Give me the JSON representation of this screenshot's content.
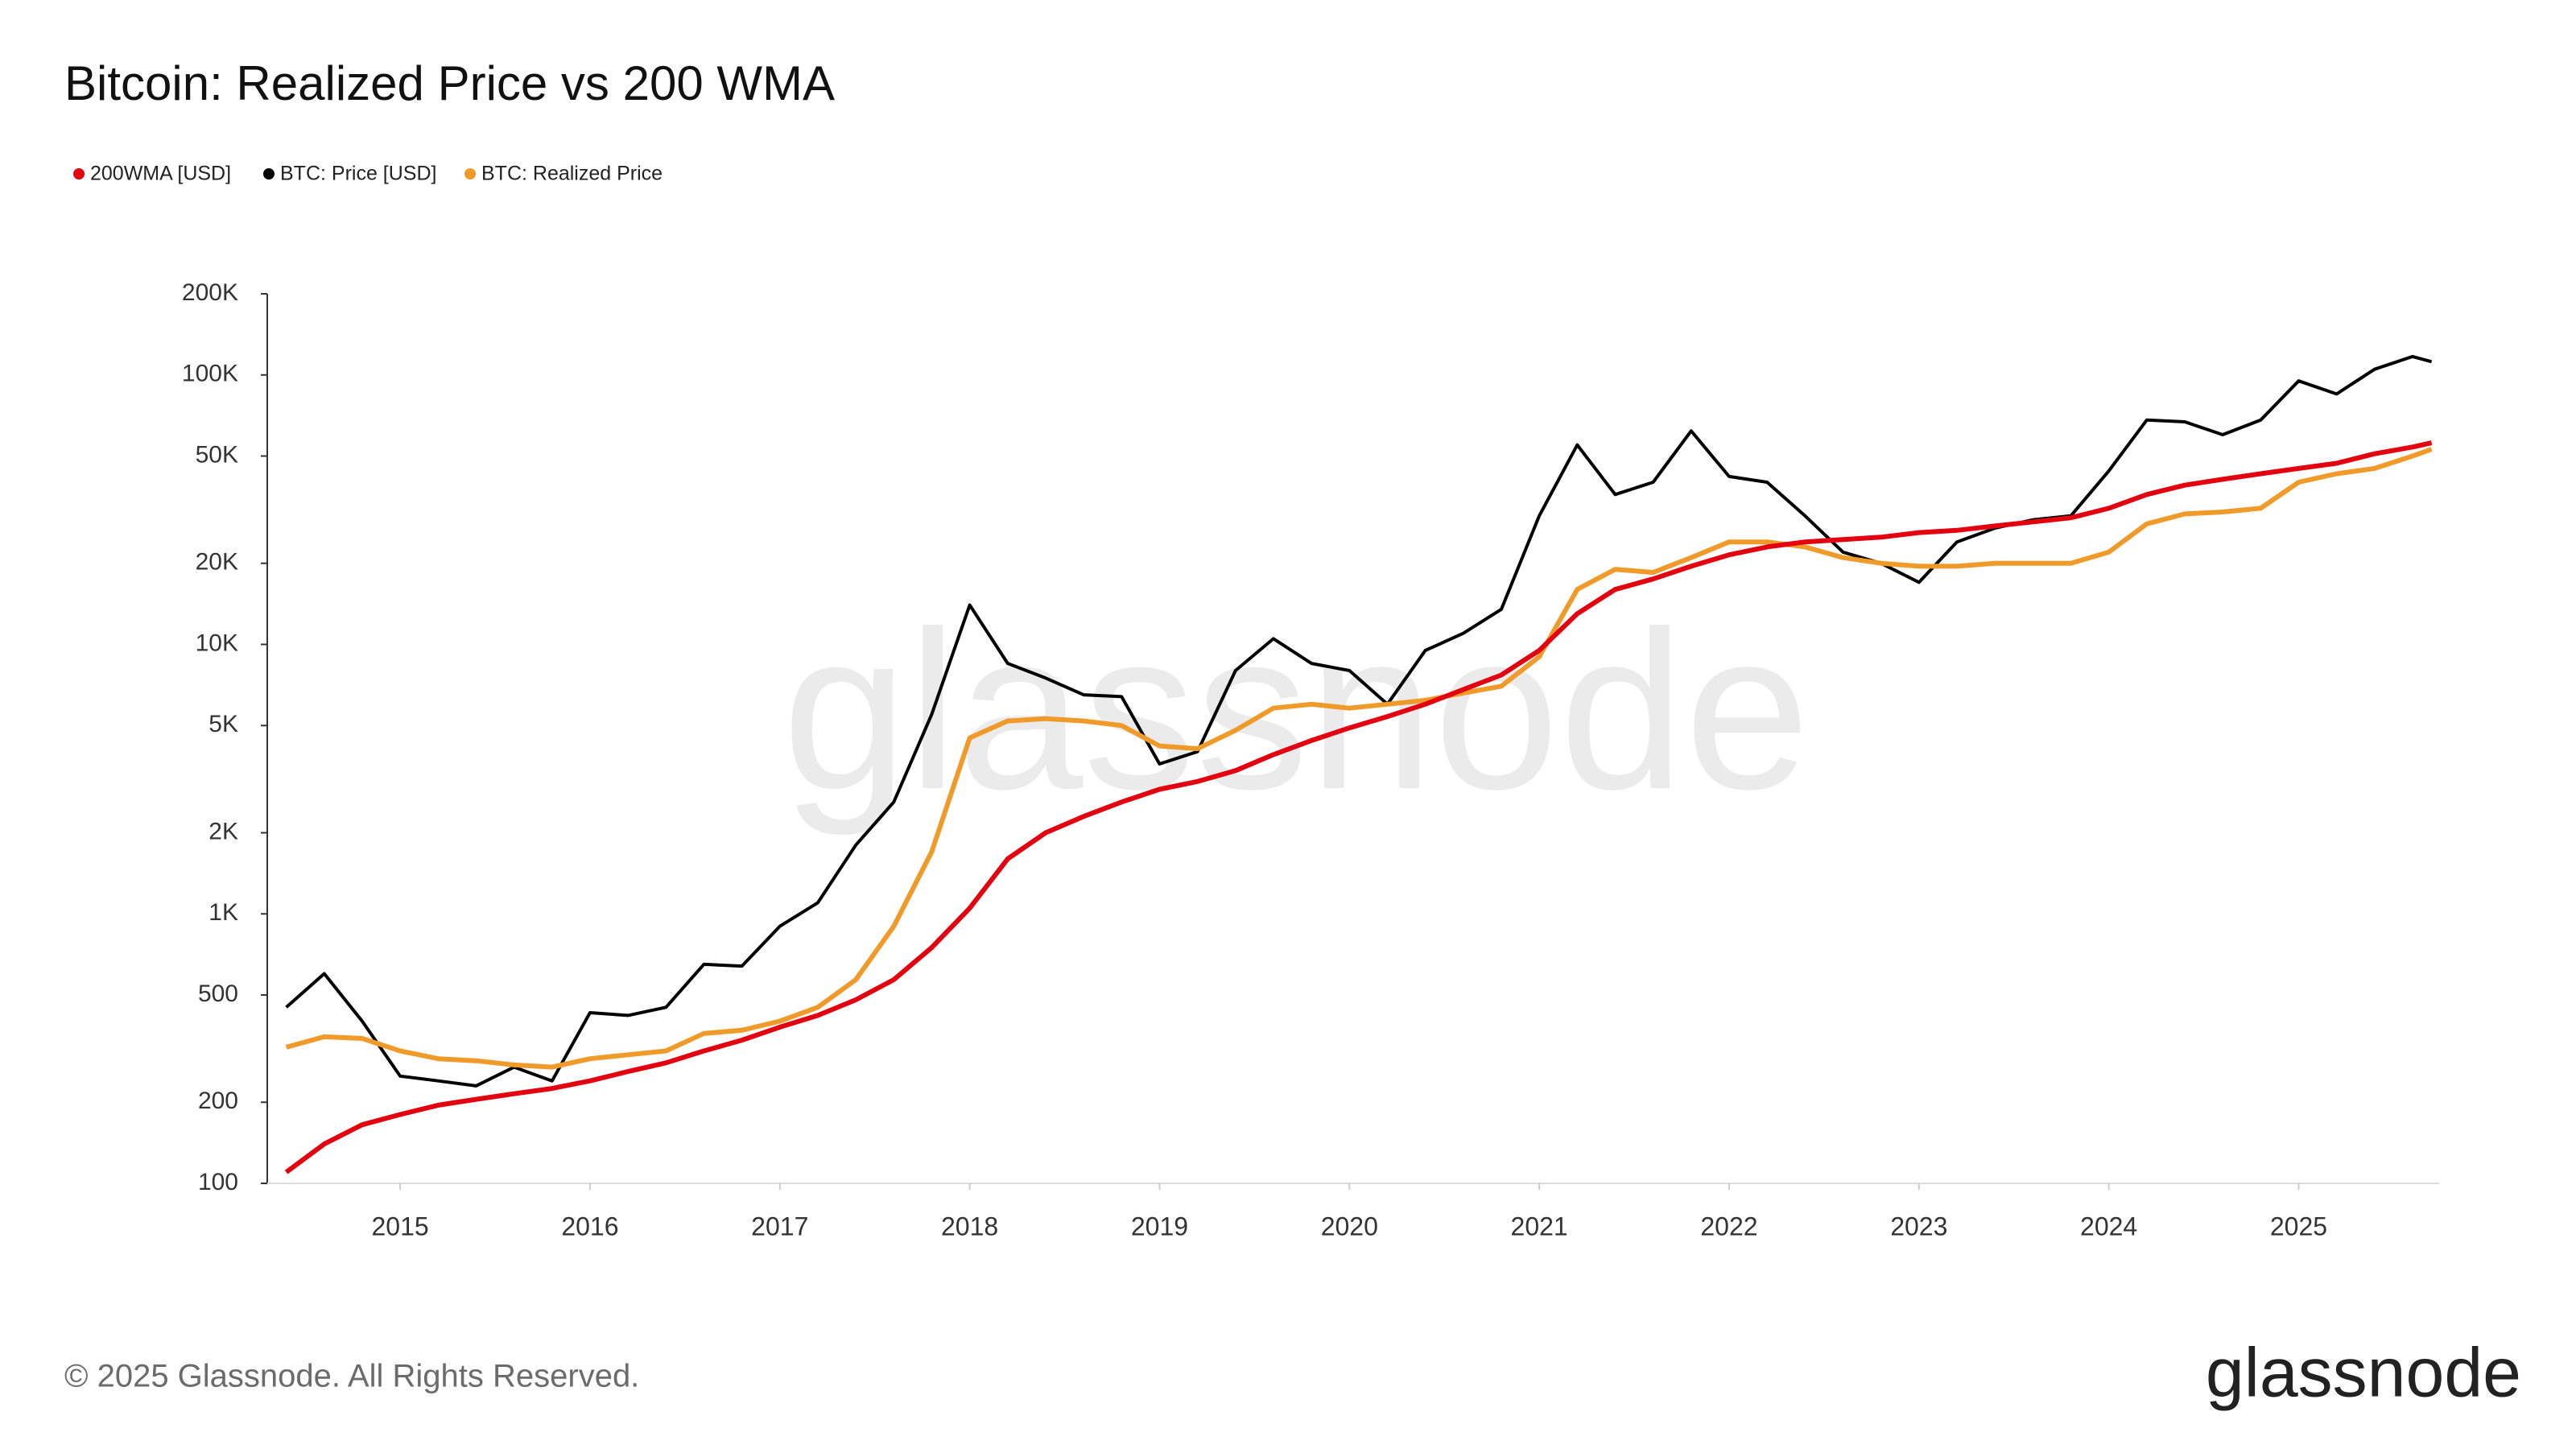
{
  "chart_data": {
    "type": "line",
    "title": "Bitcoin: Realized Price vs 200 WMA",
    "watermark": "glassnode",
    "footer": "© 2025 Glassnode. All Rights Reserved.",
    "logo": "glassnode",
    "log_y": true,
    "grid": false,
    "x": [
      2014.4,
      2014.6,
      2014.8,
      2015.0,
      2015.2,
      2015.4,
      2015.6,
      2015.8,
      2016.0,
      2016.2,
      2016.4,
      2016.6,
      2016.8,
      2017.0,
      2017.2,
      2017.4,
      2017.6,
      2017.8,
      2018.0,
      2018.2,
      2018.4,
      2018.6,
      2018.8,
      2019.0,
      2019.2,
      2019.4,
      2019.6,
      2019.8,
      2020.0,
      2020.2,
      2020.4,
      2020.6,
      2020.8,
      2021.0,
      2021.2,
      2021.4,
      2021.6,
      2021.8,
      2022.0,
      2022.2,
      2022.4,
      2022.6,
      2022.8,
      2023.0,
      2023.2,
      2023.4,
      2023.6,
      2023.8,
      2024.0,
      2024.2,
      2024.4,
      2024.6,
      2024.8,
      2025.0,
      2025.2,
      2025.4,
      2025.6,
      2025.7
    ],
    "xlim": [
      2014.3,
      2025.74
    ],
    "xticks": [
      2015,
      2016,
      2017,
      2018,
      2019,
      2020,
      2021,
      2022,
      2023,
      2024,
      2025
    ],
    "ylim": [
      100,
      200000
    ],
    "yticks": [
      100,
      200,
      500,
      {
        "value": 1000,
        "label": "1K"
      },
      {
        "value": 2000,
        "label": "2K"
      },
      {
        "value": 5000,
        "label": "5K"
      },
      {
        "value": 10000,
        "label": "10K"
      },
      {
        "value": 20000,
        "label": "20K"
      },
      {
        "value": 50000,
        "label": "50K"
      },
      {
        "value": 100000,
        "label": "100K"
      },
      {
        "value": 200000,
        "label": "200K"
      }
    ],
    "series": [
      {
        "name": "200WMA [USD]",
        "color": "#e3000f",
        "values": [
          110,
          140,
          165,
          180,
          195,
          205,
          215,
          225,
          240,
          260,
          280,
          310,
          340,
          380,
          420,
          480,
          570,
          750,
          1050,
          1600,
          2000,
          2300,
          2600,
          2900,
          3100,
          3400,
          3900,
          4400,
          4900,
          5400,
          6000,
          6800,
          7700,
          9500,
          13000,
          16000,
          17500,
          19500,
          21500,
          23000,
          24000,
          24500,
          25000,
          26000,
          26500,
          27500,
          28500,
          29500,
          32000,
          36000,
          39000,
          41000,
          43000,
          45000,
          47000,
          51000,
          54000,
          56000
        ]
      },
      {
        "name": "BTC: Price [USD]",
        "color": "#000000",
        "values": [
          450,
          600,
          400,
          250,
          240,
          230,
          270,
          240,
          430,
          420,
          450,
          650,
          640,
          900,
          1100,
          1800,
          2600,
          5500,
          14000,
          8500,
          7500,
          6500,
          6400,
          3600,
          4000,
          8000,
          10500,
          8500,
          8000,
          6000,
          9500,
          11000,
          13500,
          30000,
          55000,
          36000,
          40000,
          62000,
          42000,
          40000,
          30000,
          22000,
          20000,
          17000,
          24000,
          27000,
          29000,
          30000,
          44000,
          68000,
          67000,
          60000,
          68000,
          95000,
          85000,
          105000,
          117000,
          112000
        ]
      },
      {
        "name": "BTC: Realized Price",
        "color": "#f09a2a",
        "values": [
          320,
          350,
          345,
          310,
          290,
          285,
          275,
          270,
          290,
          300,
          310,
          360,
          370,
          400,
          450,
          570,
          900,
          1700,
          4500,
          5200,
          5300,
          5200,
          5000,
          4200,
          4100,
          4800,
          5800,
          6000,
          5800,
          6000,
          6200,
          6600,
          7000,
          9000,
          16000,
          19000,
          18500,
          21000,
          24000,
          24000,
          23000,
          21000,
          20000,
          19500,
          19500,
          20000,
          20000,
          20000,
          22000,
          28000,
          30500,
          31000,
          32000,
          40000,
          43000,
          45000,
          50000,
          53000
        ]
      }
    ]
  }
}
